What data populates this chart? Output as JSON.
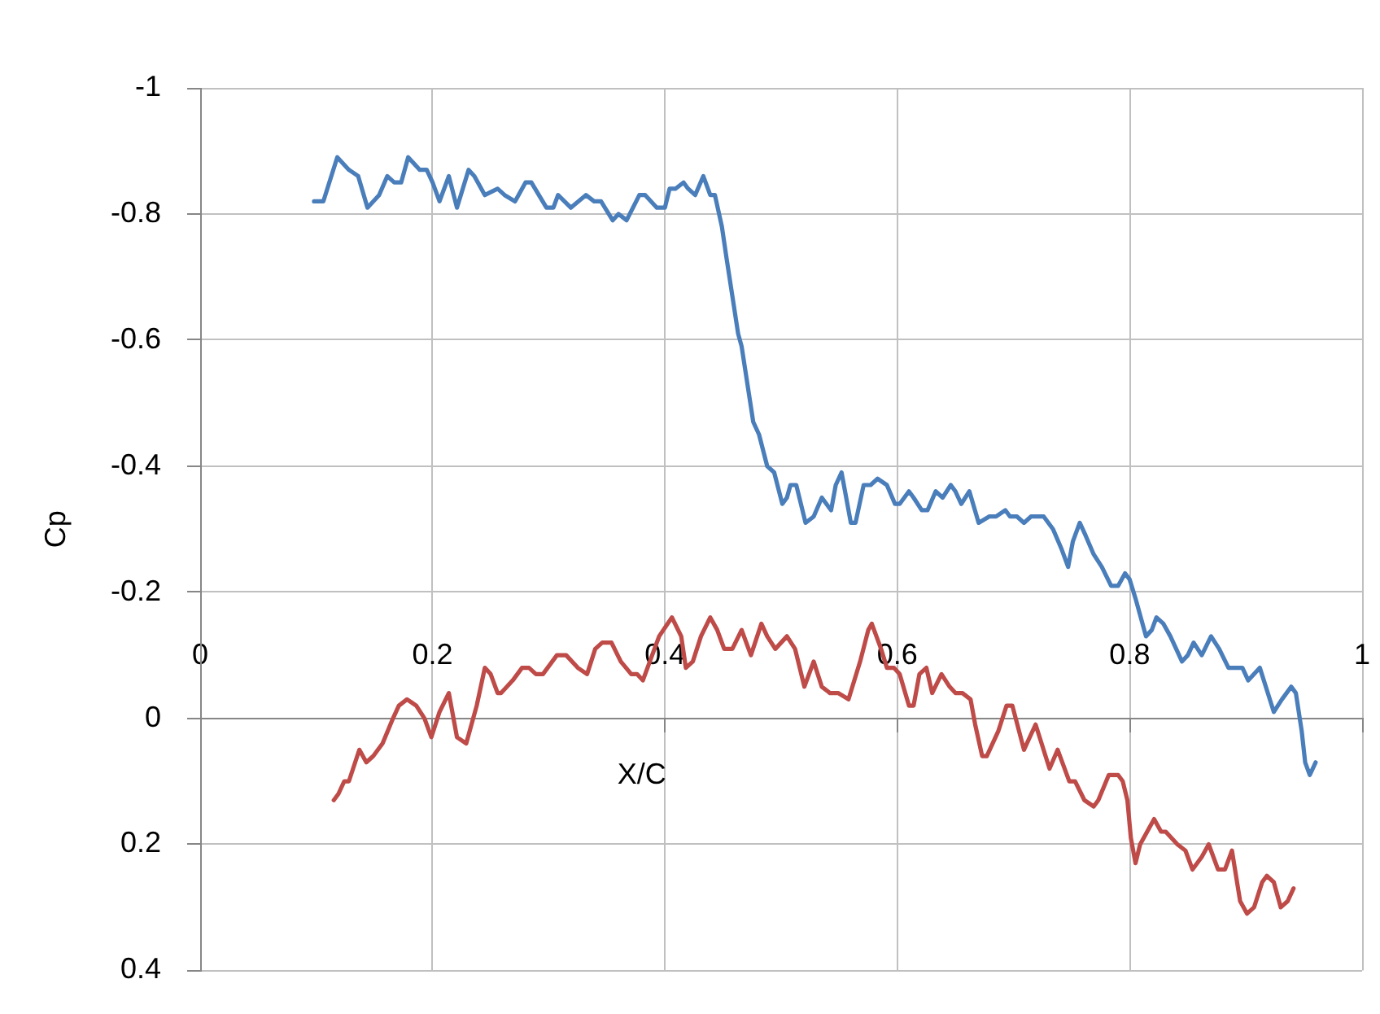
{
  "chart_data": {
    "type": "line",
    "xlabel": "X/C",
    "ylabel": "Cp",
    "xlim": [
      0,
      1
    ],
    "xticks": [
      0,
      0.2,
      0.4,
      0.6,
      0.8,
      1
    ],
    "ylim": [
      0.4,
      -1
    ],
    "yticks": [
      -1,
      -0.8,
      -0.6,
      -0.4,
      -0.2,
      0,
      0.2,
      0.4
    ],
    "grid": true,
    "marker": "none",
    "series": [
      {
        "color": "#4a7ebb",
        "x": [
          0.098,
          0.106,
          0.118,
          0.128,
          0.136,
          0.144,
          0.154,
          0.161,
          0.167,
          0.173,
          0.179,
          0.189,
          0.195,
          0.2,
          0.206,
          0.214,
          0.221,
          0.231,
          0.236,
          0.245,
          0.256,
          0.262,
          0.271,
          0.28,
          0.285,
          0.298,
          0.304,
          0.308,
          0.319,
          0.332,
          0.339,
          0.345,
          0.355,
          0.36,
          0.367,
          0.378,
          0.383,
          0.393,
          0.4,
          0.404,
          0.409,
          0.416,
          0.42,
          0.426,
          0.433,
          0.439,
          0.443,
          0.449,
          0.453,
          0.458,
          0.463,
          0.466,
          0.471,
          0.476,
          0.481,
          0.488,
          0.494,
          0.501,
          0.505,
          0.508,
          0.513,
          0.521,
          0.528,
          0.535,
          0.539,
          0.543,
          0.547,
          0.552,
          0.56,
          0.564,
          0.571,
          0.577,
          0.583,
          0.591,
          0.598,
          0.602,
          0.61,
          0.614,
          0.621,
          0.626,
          0.633,
          0.639,
          0.646,
          0.65,
          0.655,
          0.662,
          0.67,
          0.679,
          0.685,
          0.693,
          0.697,
          0.703,
          0.709,
          0.715,
          0.72,
          0.726,
          0.734,
          0.741,
          0.747,
          0.751,
          0.757,
          0.762,
          0.769,
          0.776,
          0.784,
          0.79,
          0.796,
          0.8,
          0.805,
          0.814,
          0.819,
          0.823,
          0.829,
          0.835,
          0.845,
          0.85,
          0.855,
          0.862,
          0.87,
          0.877,
          0.885,
          0.891,
          0.897,
          0.902,
          0.912,
          0.924,
          0.931,
          0.939,
          0.943,
          0.948,
          0.951,
          0.955,
          0.96
        ],
        "values": [
          -0.82,
          -0.82,
          -0.89,
          -0.87,
          -0.86,
          -0.81,
          -0.83,
          -0.86,
          -0.85,
          -0.85,
          -0.89,
          -0.87,
          -0.87,
          -0.85,
          -0.82,
          -0.86,
          -0.81,
          -0.87,
          -0.86,
          -0.83,
          -0.84,
          -0.83,
          -0.82,
          -0.85,
          -0.85,
          -0.81,
          -0.81,
          -0.83,
          -0.81,
          -0.83,
          -0.82,
          -0.82,
          -0.79,
          -0.8,
          -0.79,
          -0.83,
          -0.83,
          -0.81,
          -0.81,
          -0.84,
          -0.84,
          -0.85,
          -0.84,
          -0.83,
          -0.86,
          -0.83,
          -0.83,
          -0.78,
          -0.73,
          -0.67,
          -0.61,
          -0.59,
          -0.53,
          -0.47,
          -0.45,
          -0.4,
          -0.39,
          -0.34,
          -0.35,
          -0.37,
          -0.37,
          -0.31,
          -0.32,
          -0.35,
          -0.34,
          -0.33,
          -0.37,
          -0.39,
          -0.31,
          -0.31,
          -0.37,
          -0.37,
          -0.38,
          -0.37,
          -0.34,
          -0.34,
          -0.36,
          -0.35,
          -0.33,
          -0.33,
          -0.36,
          -0.35,
          -0.37,
          -0.36,
          -0.34,
          -0.36,
          -0.31,
          -0.32,
          -0.32,
          -0.33,
          -0.32,
          -0.32,
          -0.31,
          -0.32,
          -0.32,
          -0.32,
          -0.3,
          -0.27,
          -0.24,
          -0.28,
          -0.31,
          -0.29,
          -0.26,
          -0.24,
          -0.21,
          -0.21,
          -0.23,
          -0.22,
          -0.19,
          -0.13,
          -0.14,
          -0.16,
          -0.15,
          -0.13,
          -0.09,
          -0.1,
          -0.12,
          -0.1,
          -0.13,
          -0.11,
          -0.08,
          -0.08,
          -0.08,
          -0.06,
          -0.08,
          -0.01,
          -0.03,
          -0.05,
          -0.04,
          0.02,
          0.07,
          0.09,
          0.07
        ]
      },
      {
        "color": "#be4b48",
        "x": [
          0.115,
          0.119,
          0.124,
          0.128,
          0.137,
          0.143,
          0.149,
          0.157,
          0.166,
          0.171,
          0.178,
          0.186,
          0.193,
          0.199,
          0.206,
          0.214,
          0.221,
          0.229,
          0.238,
          0.245,
          0.25,
          0.256,
          0.259,
          0.269,
          0.277,
          0.283,
          0.289,
          0.295,
          0.299,
          0.307,
          0.315,
          0.325,
          0.333,
          0.34,
          0.346,
          0.354,
          0.362,
          0.371,
          0.376,
          0.381,
          0.387,
          0.395,
          0.406,
          0.414,
          0.418,
          0.424,
          0.431,
          0.439,
          0.445,
          0.451,
          0.458,
          0.466,
          0.474,
          0.483,
          0.488,
          0.495,
          0.505,
          0.512,
          0.52,
          0.528,
          0.535,
          0.542,
          0.549,
          0.558,
          0.568,
          0.575,
          0.578,
          0.586,
          0.591,
          0.597,
          0.602,
          0.61,
          0.614,
          0.619,
          0.625,
          0.63,
          0.638,
          0.645,
          0.65,
          0.656,
          0.663,
          0.667,
          0.673,
          0.677,
          0.687,
          0.694,
          0.699,
          0.709,
          0.719,
          0.731,
          0.738,
          0.748,
          0.753,
          0.761,
          0.769,
          0.773,
          0.782,
          0.79,
          0.794,
          0.798,
          0.801,
          0.805,
          0.809,
          0.815,
          0.821,
          0.827,
          0.831,
          0.841,
          0.848,
          0.854,
          0.862,
          0.868,
          0.876,
          0.882,
          0.888,
          0.895,
          0.901,
          0.907,
          0.914,
          0.918,
          0.924,
          0.93,
          0.936,
          0.941
        ],
        "values": [
          0.13,
          0.12,
          0.1,
          0.1,
          0.05,
          0.07,
          0.06,
          0.04,
          0,
          -0.02,
          -0.03,
          -0.02,
          0,
          0.03,
          -0.01,
          -0.04,
          0.03,
          0.04,
          -0.02,
          -0.08,
          -0.07,
          -0.04,
          -0.04,
          -0.06,
          -0.08,
          -0.08,
          -0.07,
          -0.07,
          -0.08,
          -0.1,
          -0.1,
          -0.08,
          -0.07,
          -0.11,
          -0.12,
          -0.12,
          -0.09,
          -0.07,
          -0.07,
          -0.06,
          -0.09,
          -0.13,
          -0.16,
          -0.13,
          -0.08,
          -0.09,
          -0.13,
          -0.16,
          -0.14,
          -0.11,
          -0.11,
          -0.14,
          -0.1,
          -0.15,
          -0.13,
          -0.11,
          -0.13,
          -0.11,
          -0.05,
          -0.09,
          -0.05,
          -0.04,
          -0.04,
          -0.03,
          -0.09,
          -0.14,
          -0.15,
          -0.11,
          -0.08,
          -0.08,
          -0.07,
          -0.02,
          -0.02,
          -0.07,
          -0.08,
          -0.04,
          -0.07,
          -0.05,
          -0.04,
          -0.04,
          -0.03,
          0.01,
          0.06,
          0.06,
          0.02,
          -0.02,
          -0.02,
          0.05,
          0.01,
          0.08,
          0.05,
          0.1,
          0.1,
          0.13,
          0.14,
          0.13,
          0.09,
          0.09,
          0.1,
          0.13,
          0.19,
          0.23,
          0.2,
          0.18,
          0.16,
          0.18,
          0.18,
          0.2,
          0.21,
          0.24,
          0.22,
          0.2,
          0.24,
          0.24,
          0.21,
          0.29,
          0.31,
          0.3,
          0.26,
          0.25,
          0.26,
          0.3,
          0.29,
          0.27
        ]
      }
    ]
  }
}
